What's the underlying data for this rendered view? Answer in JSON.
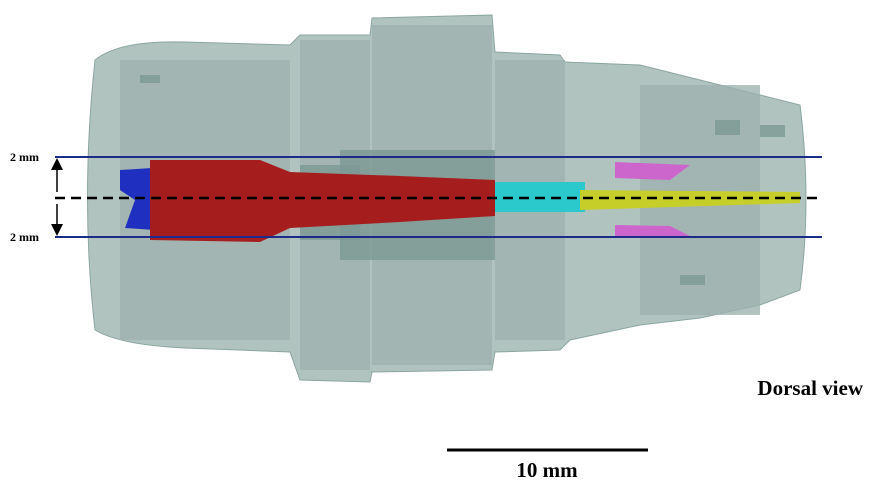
{
  "labels": {
    "top_marker": "2 mm",
    "bottom_marker": "2 mm",
    "view": "Dorsal view",
    "scale_bar": "10 mm"
  }
}
